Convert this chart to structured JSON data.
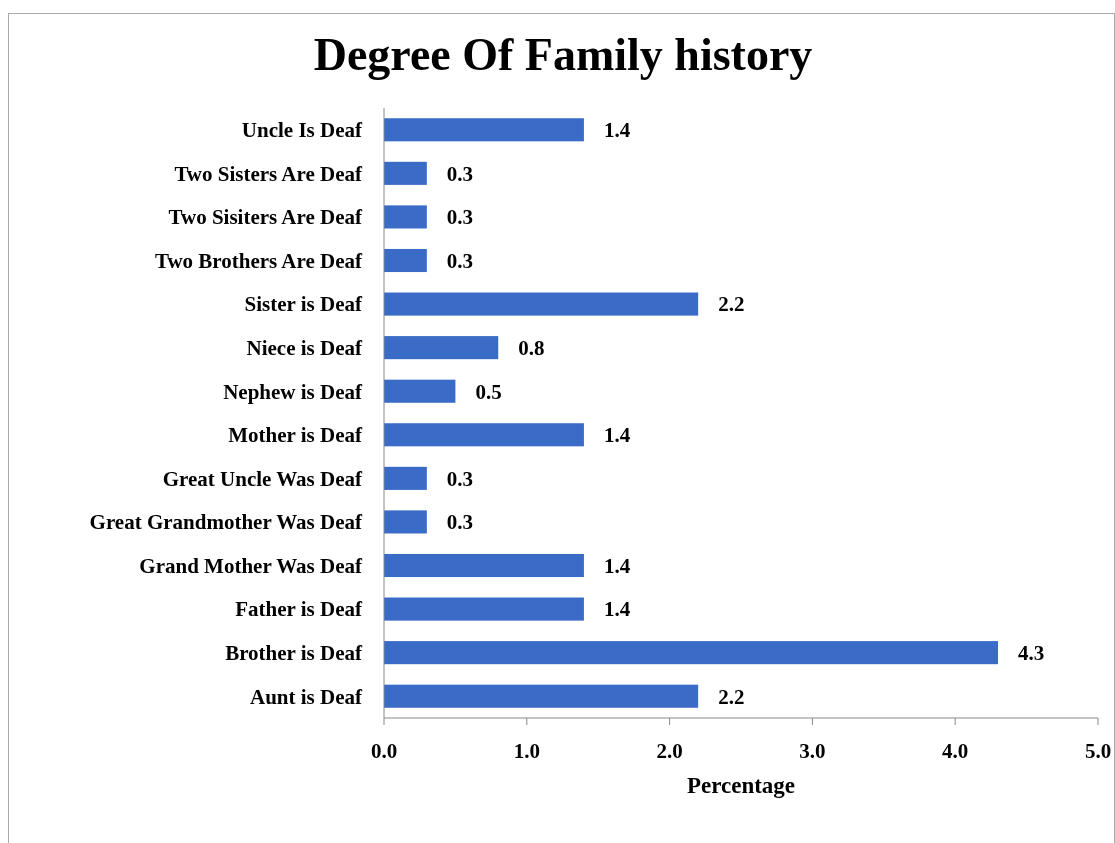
{
  "chart_data": {
    "type": "bar",
    "orientation": "horizontal",
    "title": "Degree Of Family history",
    "xlabel": "Percentage",
    "categories": [
      "Uncle Is Deaf",
      "Two Sisters Are Deaf",
      "Two Sisiters Are Deaf",
      "Two Brothers Are Deaf",
      "Sister is Deaf",
      "Niece is Deaf",
      "Nephew is Deaf",
      "Mother is Deaf",
      "Great Uncle Was Deaf",
      "Great Grandmother Was Deaf",
      "Grand Mother Was Deaf",
      "Father is Deaf",
      "Brother is Deaf",
      "Aunt is Deaf"
    ],
    "values": [
      1.4,
      0.3,
      0.3,
      0.3,
      2.2,
      0.8,
      0.5,
      1.4,
      0.3,
      0.3,
      1.4,
      1.4,
      4.3,
      2.2
    ],
    "color": "#3a6bc6",
    "xlim": [
      0,
      5
    ],
    "xticks": [
      {
        "value": 0,
        "label": "0.0"
      },
      {
        "value": 1,
        "label": "1.0"
      },
      {
        "value": 2,
        "label": "2.0"
      },
      {
        "value": 3,
        "label": "3.0"
      },
      {
        "value": 4,
        "label": "4.0"
      },
      {
        "value": 5,
        "label": "5.0"
      }
    ],
    "data_labels": true,
    "grid": false
  }
}
